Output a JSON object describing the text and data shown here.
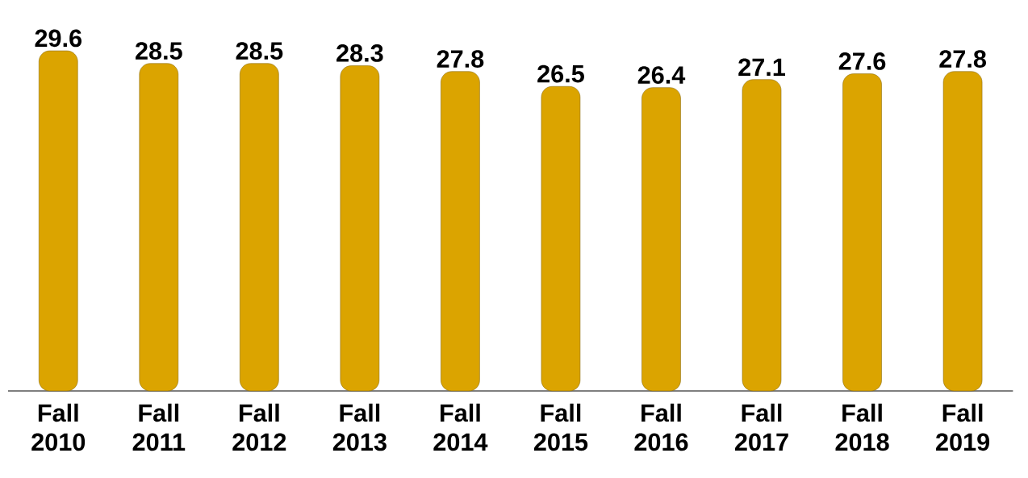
{
  "chart_data": {
    "type": "bar",
    "categories": [
      "Fall 2010",
      "Fall 2011",
      "Fall 2012",
      "Fall 2013",
      "Fall 2014",
      "Fall 2015",
      "Fall 2016",
      "Fall 2017",
      "Fall 2018",
      "Fall 2019"
    ],
    "values": [
      29.6,
      28.5,
      28.5,
      28.3,
      27.8,
      26.5,
      26.4,
      27.1,
      27.6,
      27.8
    ],
    "color": "#dba400",
    "data_labels": true
  }
}
